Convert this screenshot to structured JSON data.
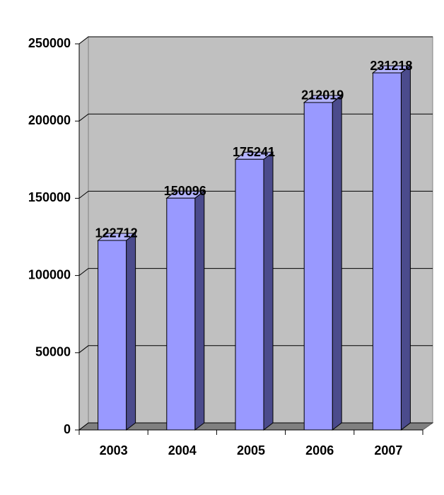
{
  "chart_data": {
    "type": "bar",
    "categories": [
      "2003",
      "2004",
      "2005",
      "2006",
      "2007"
    ],
    "values": [
      122712,
      150096,
      175241,
      212019,
      231218
    ],
    "color": "#9999ff",
    "ylim": [
      0,
      250000
    ],
    "yticks": [
      0,
      50000,
      100000,
      150000,
      200000,
      250000
    ],
    "grid": true
  }
}
